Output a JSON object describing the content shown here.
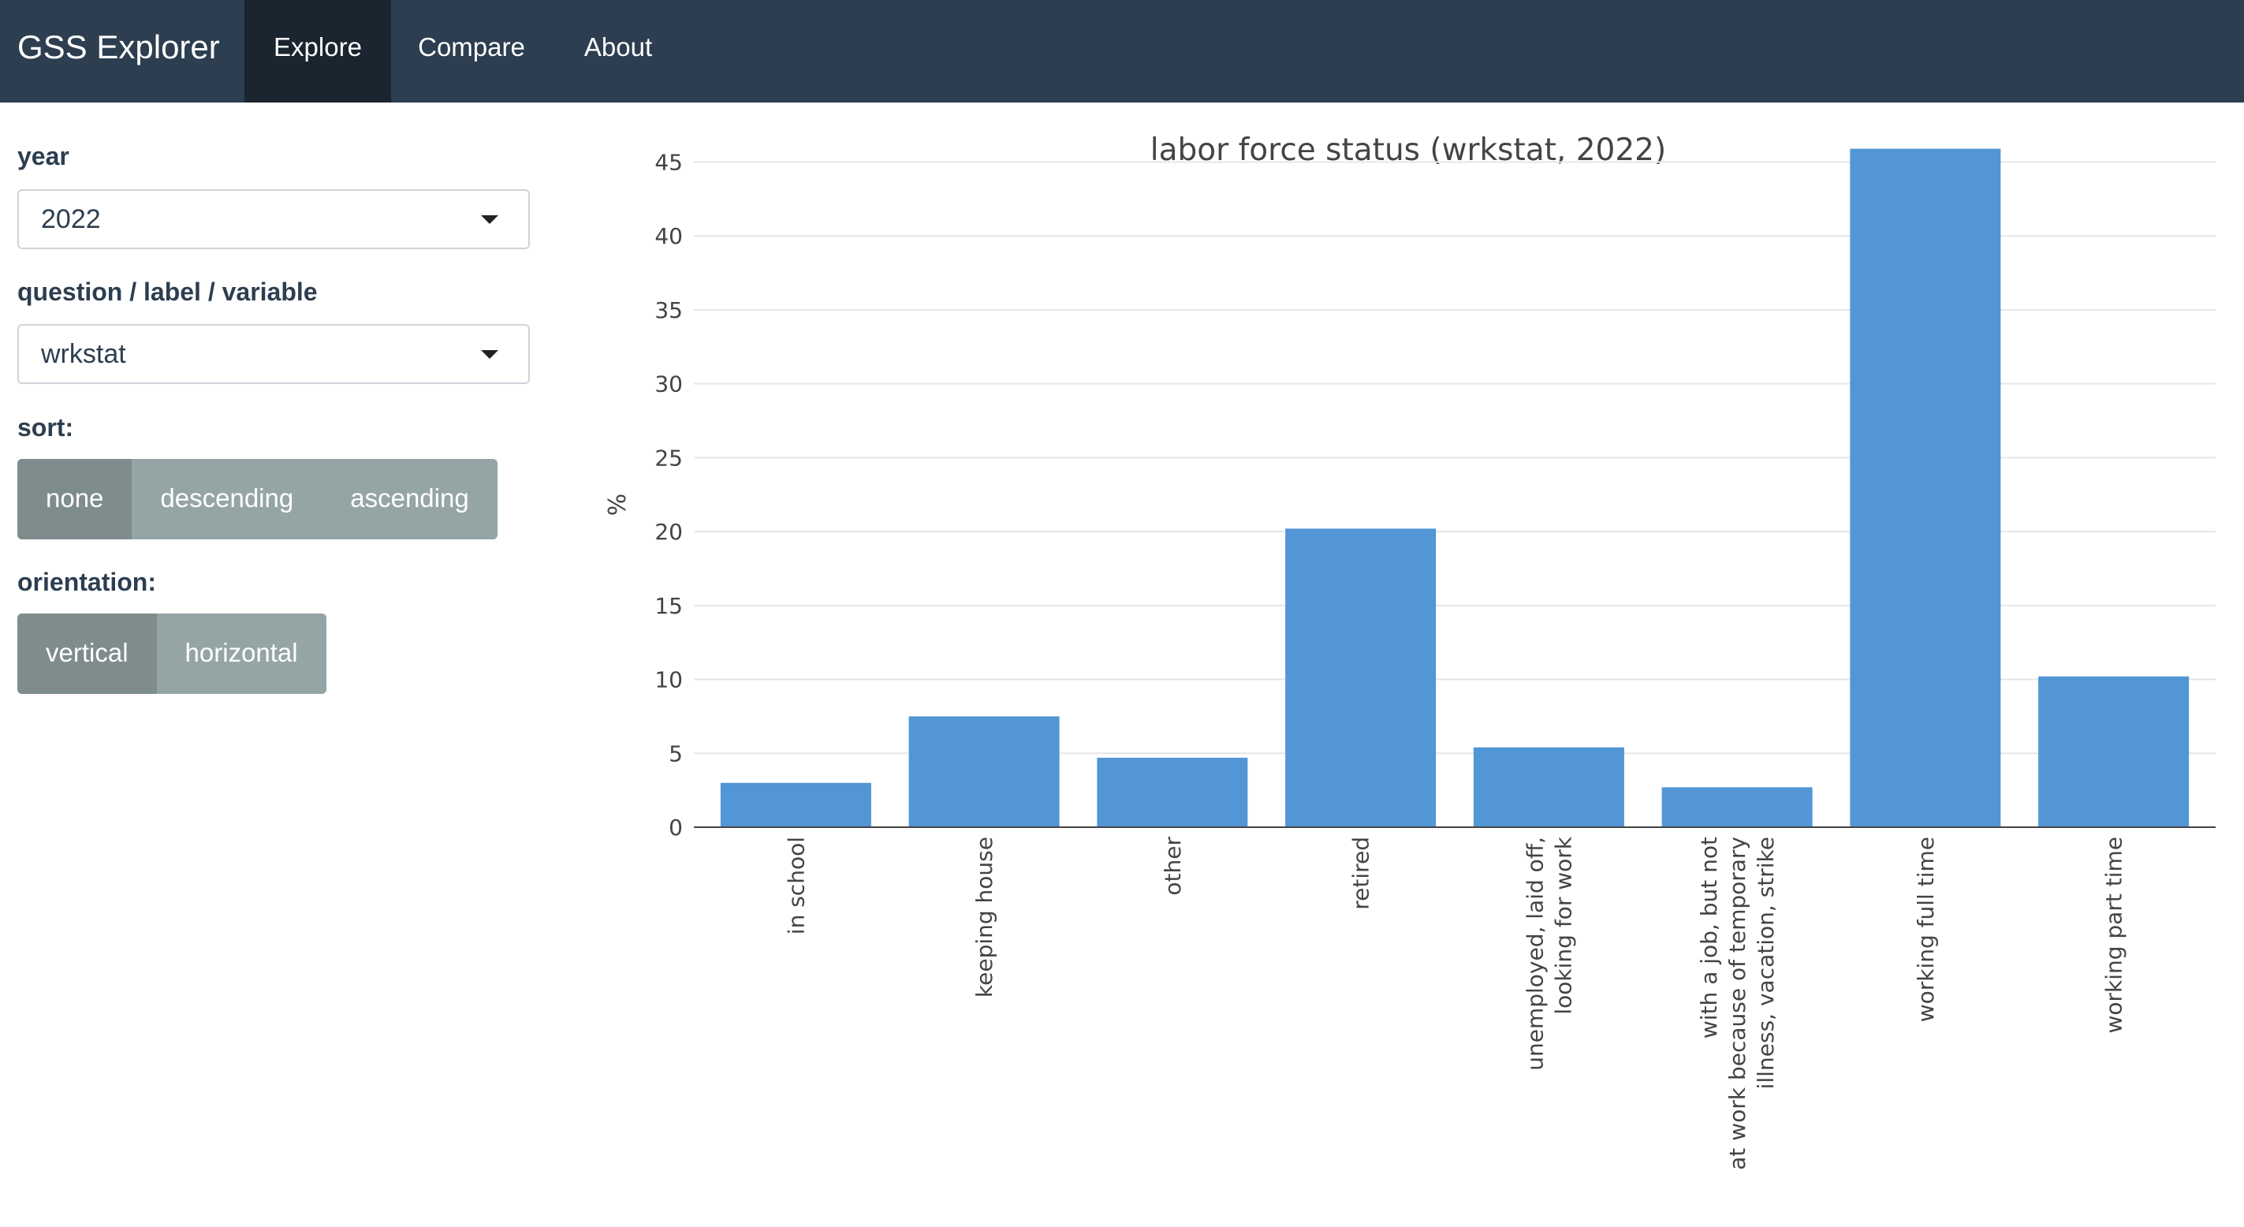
{
  "navbar": {
    "brand": "GSS Explorer",
    "tabs": [
      {
        "label": "Explore",
        "active": true
      },
      {
        "label": "Compare",
        "active": false
      },
      {
        "label": "About",
        "active": false
      }
    ]
  },
  "sidebar": {
    "year": {
      "label": "year",
      "value": "2022"
    },
    "question": {
      "label": "question / label / variable",
      "value": "wrkstat"
    },
    "sort": {
      "label": "sort:",
      "options": [
        "none",
        "descending",
        "ascending"
      ],
      "selected": "none"
    },
    "orientation": {
      "label": "orientation:",
      "options": [
        "vertical",
        "horizontal"
      ],
      "selected": "vertical"
    }
  },
  "chart_data": {
    "type": "bar",
    "title": "labor force status (wrkstat, 2022)",
    "ylabel": "%",
    "xlabel": "",
    "ylim": [
      0,
      47
    ],
    "yticks": [
      0,
      5,
      10,
      15,
      20,
      25,
      30,
      35,
      40,
      45
    ],
    "grid": true,
    "bar_color": "#5296d5",
    "categories": [
      [
        "in school"
      ],
      [
        "keeping house"
      ],
      [
        "other"
      ],
      [
        "retired"
      ],
      [
        "unemployed, laid off,",
        "looking for work"
      ],
      [
        "with a job, but not",
        "at work because of temporary",
        "illness, vacation, strike"
      ],
      [
        "working full time"
      ],
      [
        "working part time"
      ]
    ],
    "values": [
      3.0,
      7.5,
      4.7,
      20.2,
      5.4,
      2.7,
      45.9,
      10.2
    ]
  }
}
